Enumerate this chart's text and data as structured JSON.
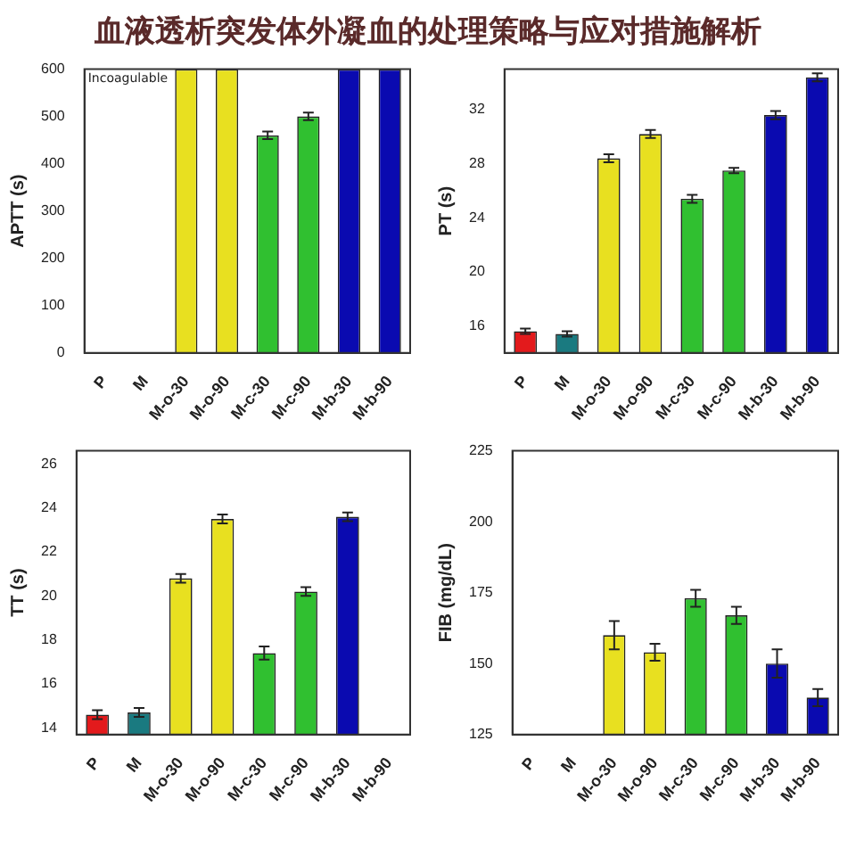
{
  "chart_data": [
    {
      "type": "other",
      "title": "血液透析突发体外凝血的处理策略与应对措施解析"
    },
    {
      "type": "bar",
      "ylabel": "APTT (s)",
      "categories": [
        "P",
        "M",
        "M-o-30",
        "M-o-90",
        "M-c-30",
        "M-c-90",
        "M-b-30",
        "M-b-90"
      ],
      "values": [
        null,
        null,
        600,
        600,
        460,
        500,
        600,
        600
      ],
      "errors": [
        null,
        null,
        null,
        null,
        8,
        8,
        null,
        null
      ],
      "colors": [
        "#e31a1c",
        "#1a7a80",
        "#e8e020",
        "#e8e020",
        "#30c030",
        "#30c030",
        "#0a0ab0",
        "#0a0ab0"
      ],
      "ylim": [
        0,
        600
      ],
      "yticks": [
        0,
        100,
        200,
        300,
        400,
        500,
        600
      ],
      "annotations": [
        "Incoagulable"
      ],
      "grid": false,
      "legend": false
    },
    {
      "type": "bar",
      "ylabel": "PT (s)",
      "categories": [
        "P",
        "M",
        "M-o-30",
        "M-o-90",
        "M-c-30",
        "M-c-90",
        "M-b-30",
        "M-b-90"
      ],
      "values": [
        15.6,
        15.4,
        28.4,
        30.2,
        25.4,
        27.5,
        31.6,
        34.4
      ],
      "errors": [
        0.2,
        0.2,
        0.3,
        0.3,
        0.3,
        0.2,
        0.3,
        0.3
      ],
      "colors": [
        "#e31a1c",
        "#1a7a80",
        "#e8e020",
        "#e8e020",
        "#30c030",
        "#30c030",
        "#0a0ab0",
        "#0a0ab0"
      ],
      "ylim": [
        14,
        35
      ],
      "yticks": [
        16,
        20,
        24,
        28,
        32
      ],
      "grid": false,
      "legend": false
    },
    {
      "type": "bar",
      "ylabel": "TT (s)",
      "categories": [
        "P",
        "M",
        "M-o-30",
        "M-o-90",
        "M-c-30",
        "M-c-90",
        "M-b-30",
        "M-b-90"
      ],
      "values": [
        14.6,
        14.7,
        20.8,
        23.5,
        17.4,
        20.2,
        23.6,
        null
      ],
      "errors": [
        0.2,
        0.2,
        0.2,
        0.2,
        0.3,
        0.2,
        0.2,
        null
      ],
      "colors": [
        "#e31a1c",
        "#1a7a80",
        "#e8e020",
        "#e8e020",
        "#30c030",
        "#30c030",
        "#0a0ab0",
        "#0a0ab0"
      ],
      "ylim": [
        13.7,
        26.6
      ],
      "yticks": [
        14,
        16,
        18,
        20,
        22,
        24,
        26
      ],
      "grid": false,
      "legend": false
    },
    {
      "type": "bar",
      "ylabel": "FIB (mg/dL)",
      "categories": [
        "P",
        "M",
        "M-o-30",
        "M-o-90",
        "M-c-30",
        "M-c-90",
        "M-b-30",
        "M-b-90"
      ],
      "values": [
        null,
        null,
        160,
        154,
        173,
        167,
        150,
        138
      ],
      "errors": [
        null,
        null,
        5,
        3,
        3,
        3,
        5,
        3
      ],
      "colors": [
        "#e31a1c",
        "#1a7a80",
        "#e8e020",
        "#e8e020",
        "#30c030",
        "#30c030",
        "#0a0ab0",
        "#0a0ab0"
      ],
      "ylim": [
        125,
        225
      ],
      "yticks": [
        125,
        150,
        175,
        200,
        225
      ],
      "grid": false,
      "legend": false
    }
  ]
}
